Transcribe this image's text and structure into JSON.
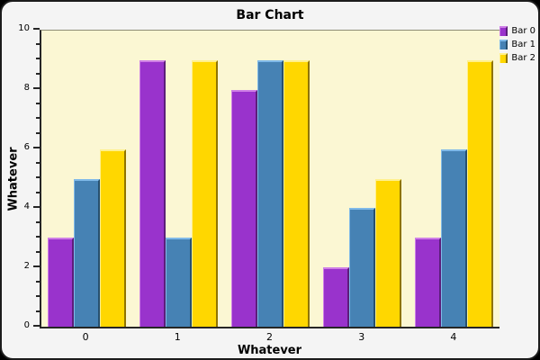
{
  "window": {
    "panel_bg": "#F4F4F4",
    "border_color": "#1c1c1c",
    "plot_bg": "#FBF7D3",
    "axis_color": "#262626"
  },
  "chart_data": {
    "type": "bar",
    "title": "Bar Chart",
    "xlabel": "Whatever",
    "ylabel": "Whatever",
    "categories": [
      "0",
      "1",
      "2",
      "3",
      "4"
    ],
    "series": [
      {
        "name": "Bar 0",
        "color": "#9933CC",
        "color_light": "#CE7FE6",
        "color_dark": "#5C1E7A",
        "values": [
          3,
          9,
          8,
          2,
          3
        ]
      },
      {
        "name": "Bar 1",
        "color": "#4682B4",
        "color_light": "#7FB9E8",
        "color_dark": "#27506F",
        "values": [
          5,
          3,
          9,
          4,
          6
        ]
      },
      {
        "name": "Bar 2",
        "color": "#FFD700",
        "color_light": "#FFF08C",
        "color_dark": "#8F7400",
        "values": [
          6,
          9,
          9,
          5,
          9
        ]
      }
    ],
    "ylim": [
      0,
      10
    ],
    "y_major_step": 2,
    "y_minor_step": 0.5,
    "y_tick_labels": [
      "0",
      "2",
      "4",
      "6",
      "8",
      "10"
    ],
    "grid": false,
    "legend_position": "top-right"
  }
}
